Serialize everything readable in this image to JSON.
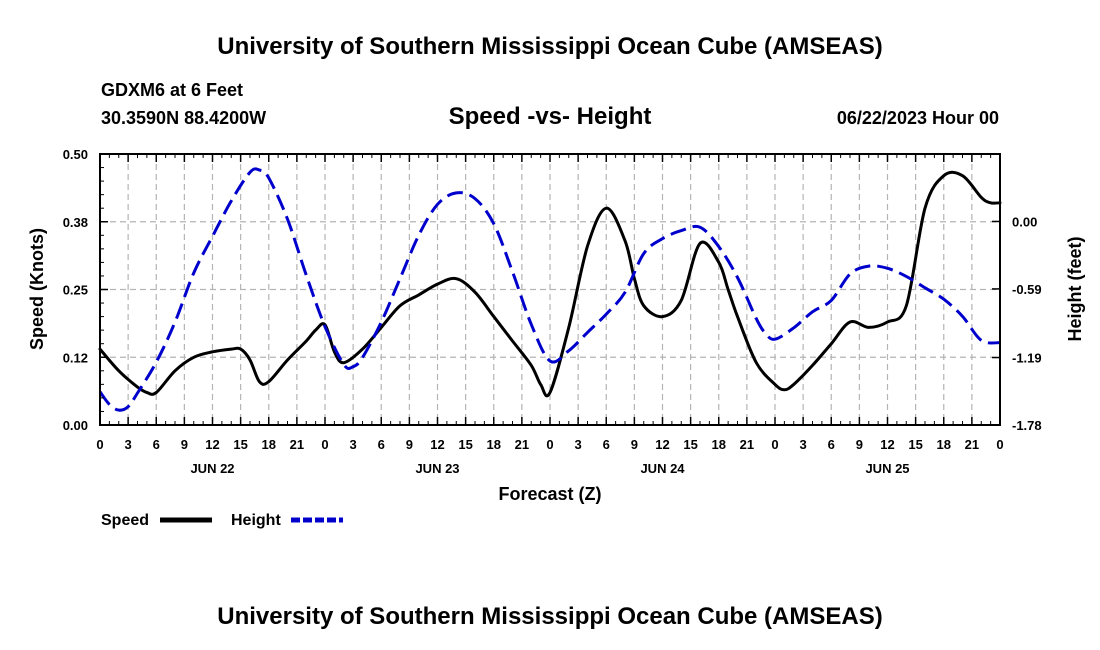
{
  "page": {
    "title": "University of Southern Mississippi Ocean Cube (AMSEAS)",
    "footer_title": "University of Southern Mississippi Ocean Cube (AMSEAS)"
  },
  "header": {
    "station": "GDXM6 at 6 Feet",
    "coords": "30.3590N  88.4200W",
    "subtitle": "Speed -vs- Height",
    "datetime": "06/22/2023 Hour 00"
  },
  "chart_data": {
    "type": "line",
    "title": "Speed -vs- Height",
    "xlabel": "Forecast (Z)",
    "ylabel": "Speed (Knots)",
    "y2label": "Height (feet)",
    "xlim": [
      0,
      96
    ],
    "ylim": [
      0,
      0.5
    ],
    "y2lim": [
      -1.78,
      0.59
    ],
    "y_ticks": [
      "0.00",
      "0.12",
      "0.25",
      "0.38",
      "0.50"
    ],
    "y_tick_values": [
      0,
      0.125,
      0.25,
      0.375,
      0.5
    ],
    "y2_ticks": [
      "-1.78",
      "-1.19",
      "-0.59",
      "0.00"
    ],
    "y2_tick_values": [
      -1.78,
      -1.19,
      -0.59,
      0
    ],
    "x_hour_labels": [
      "0",
      "3",
      "6",
      "9",
      "12",
      "15",
      "18",
      "21",
      "0",
      "3",
      "6",
      "9",
      "12",
      "15",
      "18",
      "21",
      "0",
      "3",
      "6",
      "9",
      "12",
      "15",
      "18",
      "21",
      "0",
      "3",
      "6",
      "9",
      "12",
      "15",
      "18",
      "21",
      "0"
    ],
    "day_labels": [
      {
        "label": "JUN 22",
        "hour": 12
      },
      {
        "label": "JUN 23",
        "hour": 36
      },
      {
        "label": "JUN 24",
        "hour": 60
      },
      {
        "label": "JUN 25",
        "hour": 84
      }
    ],
    "series": [
      {
        "name": "Speed",
        "axis": "left",
        "color": "#000000",
        "dash": "solid",
        "x": [
          0,
          2,
          4,
          5,
          6,
          8,
          10,
          12,
          14,
          15,
          16,
          17,
          18,
          20,
          22,
          23,
          24,
          25,
          26,
          28,
          30,
          32,
          34,
          36,
          38,
          40,
          42,
          44,
          46,
          47,
          48,
          50,
          52,
          54,
          56,
          57,
          58,
          60,
          62,
          64,
          66,
          67,
          68,
          70,
          72,
          73,
          74,
          76,
          78,
          80,
          82,
          84,
          86,
          88,
          90,
          92,
          94,
          95,
          96
        ],
        "values": [
          0.14,
          0.1,
          0.07,
          0.06,
          0.06,
          0.1,
          0.125,
          0.135,
          0.14,
          0.14,
          0.12,
          0.08,
          0.08,
          0.12,
          0.155,
          0.175,
          0.185,
          0.135,
          0.115,
          0.14,
          0.18,
          0.22,
          0.24,
          0.26,
          0.27,
          0.245,
          0.2,
          0.155,
          0.11,
          0.075,
          0.06,
          0.18,
          0.33,
          0.4,
          0.34,
          0.27,
          0.22,
          0.2,
          0.23,
          0.335,
          0.3,
          0.25,
          0.2,
          0.115,
          0.075,
          0.065,
          0.075,
          0.11,
          0.15,
          0.19,
          0.18,
          0.19,
          0.22,
          0.4,
          0.46,
          0.46,
          0.42,
          0.41,
          0.41
        ]
      },
      {
        "name": "Height",
        "axis": "right",
        "color": "#0000cc",
        "dash": "dashed",
        "x": [
          0,
          1,
          2,
          3,
          4,
          6,
          8,
          10,
          12,
          14,
          16,
          17,
          18,
          20,
          22,
          24,
          26,
          27,
          28,
          30,
          32,
          34,
          36,
          38,
          40,
          42,
          44,
          46,
          48,
          50,
          52,
          54,
          56,
          58,
          60,
          62,
          64,
          66,
          68,
          70,
          71,
          72,
          74,
          76,
          78,
          80,
          82,
          84,
          86,
          88,
          90,
          92,
          94,
          96
        ],
        "values": [
          -1.49,
          -1.6,
          -1.65,
          -1.62,
          -1.5,
          -1.23,
          -0.88,
          -0.45,
          -0.13,
          0.18,
          0.43,
          0.45,
          0.38,
          0.02,
          -0.47,
          -0.92,
          -1.25,
          -1.27,
          -1.19,
          -0.88,
          -0.5,
          -0.12,
          0.15,
          0.25,
          0.2,
          -0.02,
          -0.44,
          -0.9,
          -1.22,
          -1.13,
          -0.97,
          -0.81,
          -0.62,
          -0.28,
          -0.15,
          -0.08,
          -0.05,
          -0.22,
          -0.49,
          -0.85,
          -0.98,
          -1.03,
          -0.93,
          -0.79,
          -0.69,
          -0.46,
          -0.39,
          -0.41,
          -0.48,
          -0.58,
          -0.68,
          -0.83,
          -1.04,
          -1.06
        ]
      }
    ],
    "legend": [
      {
        "label": "Speed",
        "color": "#000000",
        "dash": "solid"
      },
      {
        "label": "Height",
        "color": "#0000cc",
        "dash": "dashed"
      }
    ],
    "grid": true,
    "legend_position": "bottom-left"
  }
}
